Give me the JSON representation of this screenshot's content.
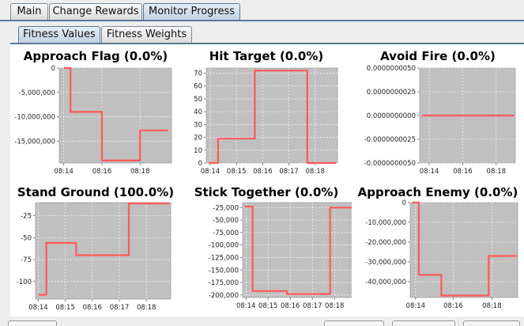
{
  "tabs": {
    "main": [
      "Main",
      "Change Rewards",
      "Monitor Progress"
    ],
    "sub": [
      "Fitness Values",
      "Fitness Weights"
    ]
  },
  "colors": {
    "series": "#ff5a5a",
    "plot_bg": "#c0c0c0",
    "tab_active": "#c5d6e6"
  },
  "chart_data": [
    {
      "type": "line",
      "title": "Approach Flag (0.0%)",
      "xticks": [
        "08:14",
        "08:16",
        "08:18"
      ],
      "yticks": [
        "0",
        "-5,000,000",
        "-10,000,000",
        "-15,000,000"
      ],
      "ylim": [
        -19500000,
        0
      ],
      "xlim": [
        0,
        100
      ],
      "series": [
        {
          "values": [
            [
              4,
              0
            ],
            [
              10,
              0
            ],
            [
              10,
              -9000000
            ],
            [
              38,
              -9000000
            ],
            [
              38,
              -19000000
            ],
            [
              72,
              -19000000
            ],
            [
              72,
              -12800000
            ],
            [
              97,
              -12800000
            ]
          ]
        }
      ]
    },
    {
      "type": "line",
      "title": "Hit Target (0.0%)",
      "xticks": [
        "08:14",
        "08:15",
        "08:16",
        "08:17",
        "08:18"
      ],
      "yticks": [
        "70",
        "60",
        "50",
        "40",
        "30",
        "20",
        "10",
        "0"
      ],
      "ylim": [
        0,
        74
      ],
      "xlim": [
        0,
        100
      ],
      "series": [
        {
          "values": [
            [
              2,
              0
            ],
            [
              9,
              0
            ],
            [
              9,
              19
            ],
            [
              37,
              19
            ],
            [
              37,
              72
            ],
            [
              77,
              72
            ],
            [
              77,
              0
            ],
            [
              99,
              0
            ]
          ]
        }
      ]
    },
    {
      "type": "line",
      "title": "Avoid Fire (0.0%)",
      "xticks": [
        "08:14",
        "08:16",
        "08:18"
      ],
      "yticks": [
        "0.0000000050",
        "0.0000000025",
        "0.0000000000",
        "-0.0000000025",
        "-0.0000000050"
      ],
      "ylim": [
        -5e-09,
        5e-09
      ],
      "xlim": [
        0,
        100
      ],
      "series": [
        {
          "values": [
            [
              2,
              0
            ],
            [
              99,
              0
            ]
          ]
        }
      ]
    },
    {
      "type": "line",
      "title": "Stand Ground (100.0%)",
      "xticks": [
        "08:14",
        "08:15",
        "08:16",
        "08:17",
        "08:18"
      ],
      "yticks": [
        "-25",
        "-50",
        "-75",
        "-100"
      ],
      "ylim": [
        -120,
        -10
      ],
      "xlim": [
        0,
        100
      ],
      "series": [
        {
          "values": [
            [
              2,
              -115
            ],
            [
              8,
              -115
            ],
            [
              8,
              -56
            ],
            [
              30,
              -56
            ],
            [
              30,
              -70
            ],
            [
              69,
              -70
            ],
            [
              69,
              -11
            ],
            [
              99,
              -11
            ]
          ]
        }
      ]
    },
    {
      "type": "line",
      "title": "Stick Together (0.0%)",
      "xticks": [
        "08:14",
        "08:15",
        "08:16",
        "08:17",
        "08:18"
      ],
      "yticks": [
        "-25,000",
        "-50,000",
        "-75,000",
        "-100,000",
        "-125,000",
        "-150,000",
        "-175,000",
        "-200,000"
      ],
      "ylim": [
        -205000,
        -15000
      ],
      "xlim": [
        0,
        100
      ],
      "series": [
        {
          "values": [
            [
              2,
              -23000
            ],
            [
              9,
              -23000
            ],
            [
              9,
              -192000
            ],
            [
              40,
              -192000
            ],
            [
              40,
              -198000
            ],
            [
              79,
              -198000
            ],
            [
              79,
              -25000
            ],
            [
              99,
              -25000
            ]
          ]
        }
      ]
    },
    {
      "type": "line",
      "title": "Approach Enemy (0.0%)",
      "xticks": [
        "08:14",
        "08:16",
        "08:18"
      ],
      "yticks": [
        "0",
        "-10,000,000",
        "-20,000,000",
        "-30,000,000",
        "-40,000,000"
      ],
      "ylim": [
        -48000000,
        0
      ],
      "xlim": [
        0,
        100
      ],
      "series": [
        {
          "values": [
            [
              2,
              0
            ],
            [
              8,
              0
            ],
            [
              8,
              -36500000
            ],
            [
              29,
              -36500000
            ],
            [
              29,
              -47000000
            ],
            [
              73,
              -47000000
            ],
            [
              73,
              -27000000
            ],
            [
              99,
              -27000000
            ]
          ]
        }
      ]
    }
  ]
}
